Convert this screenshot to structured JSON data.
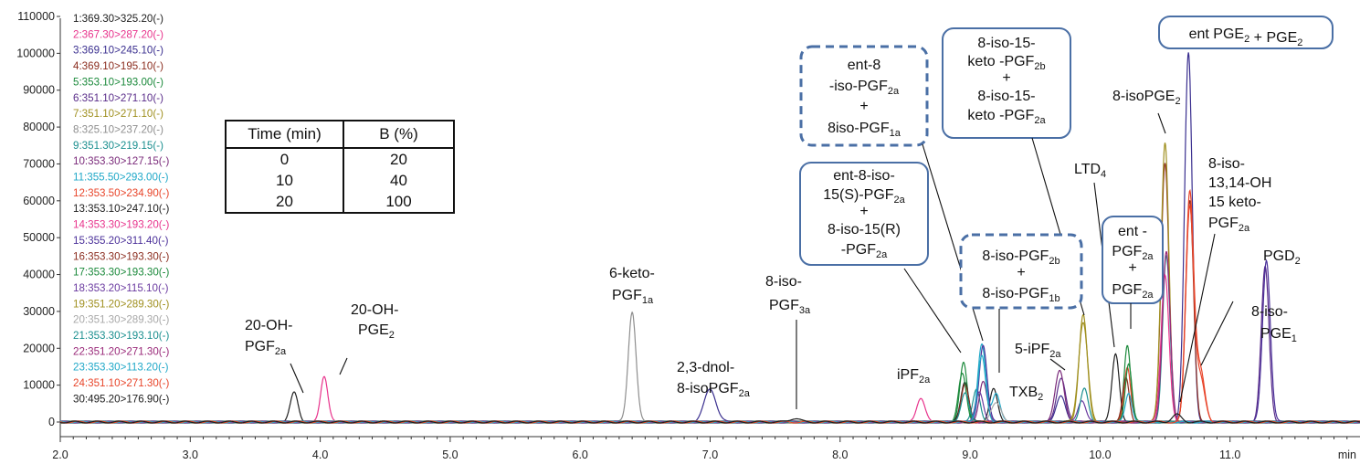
{
  "chart_data": {
    "type": "line",
    "title": "",
    "xlabel": "",
    "x_unit": "min",
    "ylabel": "",
    "xlim": [
      2.0,
      12.0
    ],
    "ylim": [
      -5000,
      110000
    ],
    "x_ticks": [
      "2.0",
      "3.0",
      "4.0",
      "5.0",
      "6.0",
      "7.0",
      "8.0",
      "9.0",
      "10.0",
      "11.0"
    ],
    "y_ticks": [
      "0",
      "10000",
      "20000",
      "30000",
      "40000",
      "50000",
      "60000",
      "70000",
      "80000",
      "90000",
      "100000",
      "110000"
    ],
    "legend_position": "left",
    "series": [
      {
        "name": "1:369.30>325.20(-)",
        "color": "#202020",
        "peaks": [
          [
            3.8,
            8000,
            0.03
          ],
          [
            9.18,
            9000,
            0.03
          ]
        ]
      },
      {
        "name": "2:367.30>287.20(-)",
        "color": "#e8338c",
        "peaks": [
          [
            4.03,
            12500,
            0.028
          ],
          [
            8.62,
            6500,
            0.032
          ]
        ]
      },
      {
        "name": "3:369.10>245.10(-)",
        "color": "#3a2f8f",
        "peaks": [
          [
            7.0,
            9000,
            0.045
          ],
          [
            9.7,
            7000,
            0.035
          ],
          [
            10.68,
            100000,
            0.03
          ]
        ]
      },
      {
        "name": "4:369.10>195.10(-)",
        "color": "#8b2d1f",
        "peaks": [
          [
            10.5,
            70000,
            0.03
          ],
          [
            10.69,
            60000,
            0.03
          ]
        ]
      },
      {
        "name": "5:353.10>193.00(-)",
        "color": "#1c8a3c",
        "peaks": [
          [
            8.95,
            16000,
            0.028
          ],
          [
            10.21,
            21000,
            0.025
          ]
        ]
      },
      {
        "name": "6:351.10>271.10(-)",
        "color": "#5a2d8a",
        "peaks": [
          [
            11.27,
            42000,
            0.03
          ],
          [
            9.7,
            12000,
            0.035
          ]
        ]
      },
      {
        "name": "7:351.10>271.10(-)",
        "color": "#a09020",
        "peaks": [
          [
            9.87,
            29000,
            0.032
          ],
          [
            10.5,
            76000,
            0.03
          ]
        ]
      },
      {
        "name": "8:325.10>237.20(-)",
        "color": "#8e8e8e",
        "peaks": [
          [
            6.4,
            30000,
            0.03
          ]
        ]
      },
      {
        "name": "9:351.30>219.15(-)",
        "color": "#1a8f8f",
        "peaks": [
          [
            10.51,
            45000,
            0.028
          ],
          [
            9.05,
            9000,
            0.028
          ]
        ]
      },
      {
        "name": "10:353.30>127.15(-)",
        "color": "#7a2a7a",
        "peaks": [
          [
            9.1,
            11000,
            0.03
          ],
          [
            9.69,
            14000,
            0.035
          ]
        ]
      },
      {
        "name": "11:355.50>293.00(-)",
        "color": "#20a8c8",
        "peaks": [
          [
            9.09,
            21000,
            0.03
          ],
          [
            9.2,
            8000,
            0.03
          ]
        ]
      },
      {
        "name": "12:353.50>234.90(-)",
        "color": "#e8452a",
        "peaks": [
          [
            10.69,
            62000,
            0.03
          ],
          [
            10.21,
            15000,
            0.025
          ],
          [
            10.77,
            14000,
            0.035
          ]
        ]
      },
      {
        "name": "13:353.10>247.10(-)",
        "color": "#202020",
        "peaks": [
          [
            10.12,
            18500,
            0.028
          ],
          [
            8.96,
            11000,
            0.03
          ]
        ]
      },
      {
        "name": "14:353.30>193.20(-)",
        "color": "#e8338c",
        "peaks": [
          [
            10.5,
            40000,
            0.03
          ]
        ]
      },
      {
        "name": "15:355.20>311.40(-)",
        "color": "#4a2f99",
        "peaks": [
          [
            9.1,
            21000,
            0.03
          ],
          [
            11.28,
            44000,
            0.03
          ]
        ]
      },
      {
        "name": "16:353.30>193.30(-)",
        "color": "#8b2d1f",
        "peaks": [
          [
            8.96,
            10000,
            0.03
          ],
          [
            10.2,
            12000,
            0.025
          ]
        ]
      },
      {
        "name": "17:353.30>193.30(-)",
        "color": "#1c8a3c",
        "peaks": [
          [
            8.94,
            13000,
            0.03
          ],
          [
            10.22,
            16000,
            0.025
          ]
        ]
      },
      {
        "name": "18:353.20>115.10(-)",
        "color": "#6a3aa0",
        "peaks": [
          [
            9.07,
            8000,
            0.03
          ],
          [
            9.86,
            6000,
            0.03
          ]
        ]
      },
      {
        "name": "19:351.20>289.30(-)",
        "color": "#a09020",
        "peaks": [
          [
            9.87,
            27000,
            0.035
          ]
        ]
      },
      {
        "name": "20:351.30>289.30(-)",
        "color": "#a8a8a8",
        "peaks": [
          [
            9.2,
            5000,
            0.04
          ]
        ]
      },
      {
        "name": "21:353.30>193.10(-)",
        "color": "#1a8f8f",
        "peaks": [
          [
            8.96,
            8000,
            0.03
          ],
          [
            9.88,
            9000,
            0.03
          ]
        ]
      },
      {
        "name": "22:351.20>271.30(-)",
        "color": "#9a2a7a",
        "peaks": [
          [
            10.51,
            46000,
            0.03
          ]
        ]
      },
      {
        "name": "23:353.30>113.20(-)",
        "color": "#20a8c8",
        "peaks": [
          [
            9.09,
            18000,
            0.03
          ],
          [
            10.22,
            8000,
            0.025
          ]
        ]
      },
      {
        "name": "24:351.10>271.30(-)",
        "color": "#e8452a",
        "peaks": [
          [
            10.69,
            58000,
            0.03
          ],
          [
            10.77,
            12000,
            0.035
          ]
        ]
      },
      {
        "name": "30:495.20>176.90(-)",
        "color": "#202020",
        "peaks": [
          [
            7.65,
            1000,
            0.04
          ],
          [
            10.59,
            2000,
            0.035
          ]
        ]
      }
    ],
    "annotations": [
      {
        "text": "20-OH-",
        "sub_line": "PGF2a"
      },
      {
        "text": "20-OH-",
        "sub_line": "PGE2"
      },
      {
        "text": "6-keto-",
        "sub_line": "PGF1a"
      },
      {
        "text": "2,3-dnol-",
        "sub_line": "8-isoPGF2a"
      },
      {
        "text": "8-iso-",
        "sub_line": "PGF3a"
      },
      {
        "text": "iPF2a"
      },
      {
        "text": "TXB2"
      },
      {
        "text": "5-iPF2a"
      },
      {
        "text": "LTD4"
      },
      {
        "text": "8-isoPGE2"
      },
      {
        "text": "8-iso-",
        "sub_line": "13,14-OH 15 keto- PGF2a"
      },
      {
        "text": "PGD2"
      },
      {
        "text": "8-iso-",
        "sub_line": "PGE1"
      },
      {
        "box": "ent-8 -iso-PGF2a + 8iso-PGF1a",
        "style": "dashed"
      },
      {
        "box": "8-iso-15- keto -PGF2b + 8-iso-15- keto -PGF2a",
        "style": "solid"
      },
      {
        "box": "ent PGE2 + PGE2",
        "style": "solid"
      },
      {
        "box": "ent-8-iso- 15(S)-PGF2a + 8-iso-15(R) -PGF2a",
        "style": "solid"
      },
      {
        "box": "8-iso-PGF2b + 8-iso-PGF1b",
        "style": "dashed"
      },
      {
        "box": "ent - PGF2a + PGF2a",
        "style": "solid"
      }
    ]
  },
  "gradient_table": {
    "headers": [
      "Time (min)",
      "B (%)"
    ],
    "rows": [
      [
        "0",
        "20"
      ],
      [
        "10",
        "40"
      ],
      [
        "20",
        "100"
      ]
    ]
  }
}
